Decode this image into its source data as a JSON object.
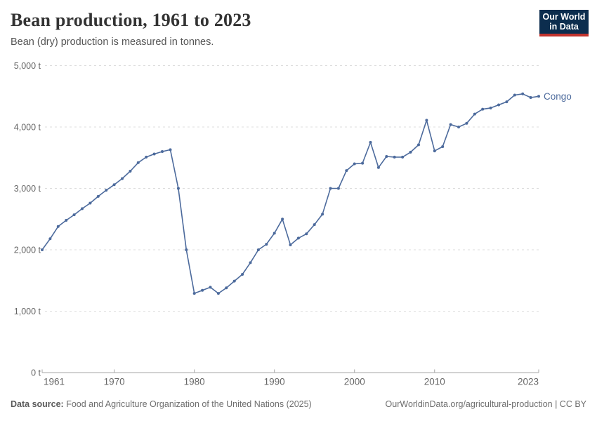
{
  "header": {
    "title": "Bean production, 1961 to 2023",
    "subtitle": "Bean (dry) production is measured in tonnes.",
    "logo": {
      "line1": "Our World",
      "line2": "in Data",
      "bg_color": "#0c2d4e",
      "accent_color": "#c0332d",
      "text_color": "#ffffff"
    }
  },
  "chart_data": {
    "type": "line",
    "title": "Bean production, 1961 to 2023",
    "xlabel": "",
    "ylabel": "",
    "unit": "tonnes",
    "xlim": [
      1961,
      2023
    ],
    "ylim": [
      0,
      5000
    ],
    "grid": "horizontal dashed",
    "legend": "end-of-line label",
    "x_ticks": [
      1961,
      1970,
      1980,
      1990,
      2000,
      2010,
      2023
    ],
    "x_tick_labels": [
      "1961",
      "1970",
      "1980",
      "1990",
      "2000",
      "2010",
      "2023"
    ],
    "y_ticks": [
      0,
      1000,
      2000,
      3000,
      4000,
      5000
    ],
    "y_tick_labels": [
      "0 t",
      "1,000 t",
      "2,000 t",
      "3,000 t",
      "4,000 t",
      "5,000 t"
    ],
    "series": [
      {
        "name": "Congo",
        "color": "#4C6A9C",
        "x": [
          1961,
          1962,
          1963,
          1964,
          1965,
          1966,
          1967,
          1968,
          1969,
          1970,
          1971,
          1972,
          1973,
          1974,
          1975,
          1976,
          1977,
          1978,
          1979,
          1980,
          1981,
          1982,
          1983,
          1984,
          1985,
          1986,
          1987,
          1988,
          1989,
          1990,
          1991,
          1992,
          1993,
          1994,
          1995,
          1996,
          1997,
          1998,
          1999,
          2000,
          2001,
          2002,
          2003,
          2004,
          2005,
          2006,
          2007,
          2008,
          2009,
          2010,
          2011,
          2012,
          2013,
          2014,
          2015,
          2016,
          2017,
          2018,
          2019,
          2020,
          2021,
          2022,
          2023
        ],
        "values": [
          2000,
          2180,
          2380,
          2480,
          2570,
          2670,
          2760,
          2870,
          2970,
          3060,
          3160,
          3280,
          3420,
          3510,
          3560,
          3600,
          3630,
          3000,
          2000,
          1290,
          1340,
          1390,
          1290,
          1380,
          1490,
          1600,
          1790,
          2000,
          2090,
          2270,
          2500,
          2080,
          2190,
          2260,
          2410,
          2580,
          3000,
          3000,
          3290,
          3400,
          3410,
          3750,
          3340,
          3520,
          3510,
          3510,
          3590,
          3710,
          4110,
          3610,
          3680,
          4040,
          4000,
          4060,
          4210,
          4290,
          4310,
          4360,
          4410,
          4520,
          4540,
          4480,
          4500
        ]
      }
    ],
    "colors": {
      "gridline": "#dcdcdc",
      "axis": "#a5a5a5",
      "tick_label": "#666666"
    }
  },
  "footer": {
    "datasource_label": "Data source:",
    "datasource_text": " Food and Agriculture Organization of the United Nations (2025)",
    "link_text": "OurWorldinData.org/agricultural-production | CC BY"
  }
}
